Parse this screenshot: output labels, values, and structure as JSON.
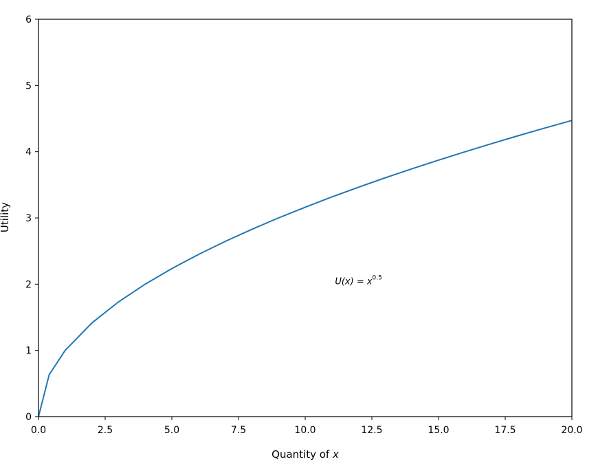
{
  "chart_data": {
    "type": "line",
    "title": "",
    "xlabel_prefix": "Quantity of ",
    "xlabel_var": "x",
    "ylabel": "Utility",
    "xlim": [
      0,
      20
    ],
    "ylim": [
      0,
      6
    ],
    "x_ticks": [
      "0.0",
      "2.5",
      "5.0",
      "7.5",
      "10.0",
      "12.5",
      "15.0",
      "17.5",
      "20.0"
    ],
    "y_ticks": [
      "0",
      "1",
      "2",
      "3",
      "4",
      "5",
      "6"
    ],
    "grid": false,
    "annotation": {
      "base": "U(x) = x",
      "exponent": "0.5",
      "x": 12.0,
      "y": 2.05
    },
    "series": [
      {
        "color": "#1f77b4",
        "x": [
          0,
          0.4,
          1,
          2,
          3,
          4,
          5,
          6,
          7,
          8,
          9,
          10,
          11,
          12,
          13,
          14,
          15,
          16,
          17,
          18,
          19,
          20
        ],
        "y": [
          0,
          0.632,
          1.0,
          1.414,
          1.732,
          2.0,
          2.236,
          2.449,
          2.646,
          2.828,
          3.0,
          3.162,
          3.317,
          3.464,
          3.606,
          3.742,
          3.873,
          4.0,
          4.123,
          4.243,
          4.359,
          4.472
        ]
      }
    ]
  }
}
